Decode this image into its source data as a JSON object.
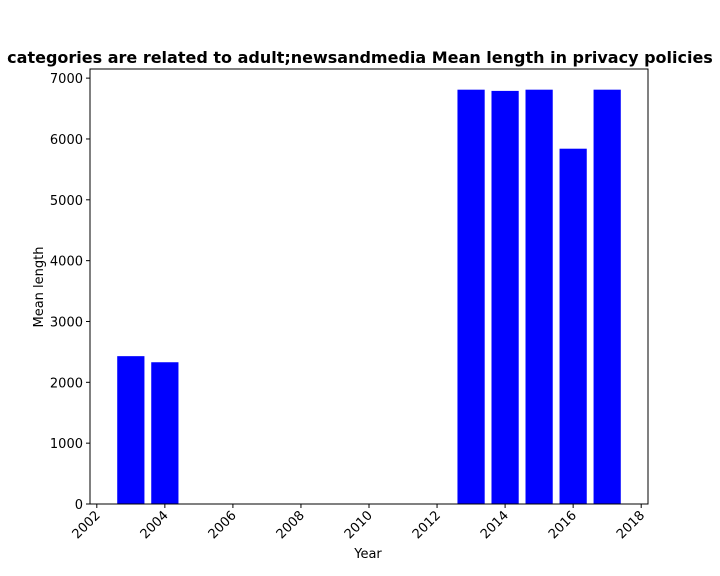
{
  "chart_data": {
    "type": "bar",
    "title": "categories are related to adult;newsandmedia Mean length in privacy policies",
    "xlabel": "Year",
    "ylabel": "Mean length",
    "x": [
      2003,
      2004,
      2013,
      2014,
      2015,
      2016,
      2017
    ],
    "values": [
      2430,
      2330,
      6810,
      6790,
      6810,
      5840,
      6810
    ],
    "xlim": [
      2001.8,
      2018.2
    ],
    "ylim": [
      0,
      7150
    ],
    "xticks": [
      2002,
      2004,
      2006,
      2008,
      2010,
      2012,
      2014,
      2016,
      2018
    ],
    "yticks": [
      0,
      1000,
      2000,
      3000,
      4000,
      5000,
      6000,
      7000
    ],
    "bar_color": "#0000ff",
    "grid": false,
    "legend": "none"
  }
}
